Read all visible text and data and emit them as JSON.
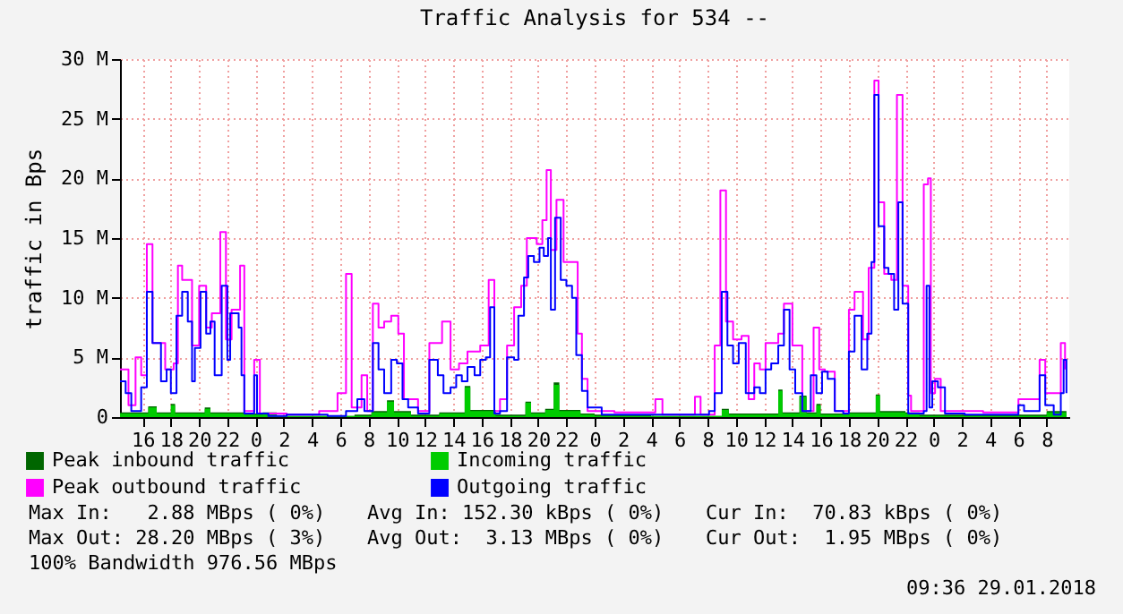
{
  "chart_data": {
    "type": "step",
    "title": "Traffic Analysis for 534 --",
    "ylabel": "traffic in Bps",
    "xlim": [
      "2018-01-26T14:24",
      "2018-01-29T09:36"
    ],
    "xticks": [
      {
        "value": "2018-01-26T16:00",
        "label": "16"
      },
      {
        "value": "2018-01-26T18:00",
        "label": "18"
      },
      {
        "value": "2018-01-26T20:00",
        "label": "20"
      },
      {
        "value": "2018-01-26T22:00",
        "label": "22"
      },
      {
        "value": "2018-01-27T00:00",
        "label": "0"
      },
      {
        "value": "2018-01-27T02:00",
        "label": "2"
      },
      {
        "value": "2018-01-27T04:00",
        "label": "4"
      },
      {
        "value": "2018-01-27T06:00",
        "label": "6"
      },
      {
        "value": "2018-01-27T08:00",
        "label": "8"
      },
      {
        "value": "2018-01-27T10:00",
        "label": "10"
      },
      {
        "value": "2018-01-27T12:00",
        "label": "12"
      },
      {
        "value": "2018-01-27T14:00",
        "label": "14"
      },
      {
        "value": "2018-01-27T16:00",
        "label": "16"
      },
      {
        "value": "2018-01-27T18:00",
        "label": "18"
      },
      {
        "value": "2018-01-27T20:00",
        "label": "20"
      },
      {
        "value": "2018-01-27T22:00",
        "label": "22"
      },
      {
        "value": "2018-01-28T00:00",
        "label": "0"
      },
      {
        "value": "2018-01-28T02:00",
        "label": "2"
      },
      {
        "value": "2018-01-28T04:00",
        "label": "4"
      },
      {
        "value": "2018-01-28T06:00",
        "label": "6"
      },
      {
        "value": "2018-01-28T08:00",
        "label": "8"
      },
      {
        "value": "2018-01-28T10:00",
        "label": "10"
      },
      {
        "value": "2018-01-28T12:00",
        "label": "12"
      },
      {
        "value": "2018-01-28T14:00",
        "label": "14"
      },
      {
        "value": "2018-01-28T16:00",
        "label": "16"
      },
      {
        "value": "2018-01-28T18:00",
        "label": "18"
      },
      {
        "value": "2018-01-28T20:00",
        "label": "20"
      },
      {
        "value": "2018-01-28T22:00",
        "label": "22"
      },
      {
        "value": "2018-01-29T00:00",
        "label": "0"
      },
      {
        "value": "2018-01-29T02:00",
        "label": "2"
      },
      {
        "value": "2018-01-29T04:00",
        "label": "4"
      },
      {
        "value": "2018-01-29T06:00",
        "label": "6"
      },
      {
        "value": "2018-01-29T08:00",
        "label": "8"
      }
    ],
    "ylim": [
      0,
      30000000.0
    ],
    "yticks": [
      0,
      {
        "value": 5000000.0,
        "label": "5 M"
      },
      {
        "value": 10000000.0,
        "label": "10 M"
      },
      {
        "value": 15000000.0,
        "label": "15 M"
      },
      {
        "value": 20000000.0,
        "label": "20 M"
      },
      {
        "value": 25000000.0,
        "label": "25 M"
      },
      {
        "value": 30000000.0,
        "label": "30 M"
      }
    ],
    "grid": true,
    "legend": "bottom",
    "series": [
      {
        "name": "Peak inbound traffic",
        "type": "area",
        "color": "#006600",
        "x": [
          "2018-01-26T14:24",
          "2018-01-26T16:00",
          "2018-01-26T16:24",
          "2018-01-26T17:00",
          "2018-01-26T18:00",
          "2018-01-26T18:18",
          "2018-01-26T20:24",
          "2018-01-26T20:48",
          "2018-01-26T23:12",
          "2018-01-27T00:30",
          "2018-01-27T01:30",
          "2018-01-27T07:00",
          "2018-01-27T08:12",
          "2018-01-27T09:18",
          "2018-01-27T09:48",
          "2018-01-27T11:00",
          "2018-01-27T13:00",
          "2018-01-27T14:48",
          "2018-01-27T15:12",
          "2018-01-27T17:00",
          "2018-01-27T19:06",
          "2018-01-27T19:30",
          "2018-01-27T20:30",
          "2018-01-27T21:06",
          "2018-01-27T21:30",
          "2018-01-27T23:00",
          "2018-01-28T00:00",
          "2018-01-28T04:00",
          "2018-01-28T09:00",
          "2018-01-28T09:30",
          "2018-01-28T13:00",
          "2018-01-28T13:18",
          "2018-01-28T14:30",
          "2018-01-28T15:00",
          "2018-01-28T15:42",
          "2018-01-28T16:00",
          "2018-01-28T18:00",
          "2018-01-28T19:54",
          "2018-01-28T20:12",
          "2018-01-28T22:00",
          "2018-01-28T23:00",
          "2018-01-29T08:00",
          "2018-01-29T09:24"
        ],
        "values": [
          400000.0,
          400000.0,
          900000.0,
          400000.0,
          1100000.0,
          400000.0,
          800000.0,
          400000.0,
          300000.0,
          400000.0,
          100000.0,
          200000.0,
          500000.0,
          1400000.0,
          500000.0,
          200000.0,
          400000.0,
          2600000.0,
          600000.0,
          200000.0,
          1300000.0,
          400000.0,
          700000.0,
          2900000.0,
          600000.0,
          300000.0,
          200000.0,
          100000.0,
          700000.0,
          300000.0,
          2300000.0,
          400000.0,
          1800000.0,
          400000.0,
          1100000.0,
          300000.0,
          400000.0,
          1900000.0,
          500000.0,
          400000.0,
          200000.0,
          500000.0,
          400000.0
        ]
      },
      {
        "name": "Incoming traffic",
        "type": "area",
        "color": "#00cc00",
        "x": [
          "2018-01-26T14:24",
          "2018-01-26T16:00",
          "2018-01-26T16:24",
          "2018-01-26T17:00",
          "2018-01-26T18:00",
          "2018-01-26T18:18",
          "2018-01-26T20:24",
          "2018-01-26T20:48",
          "2018-01-26T23:12",
          "2018-01-27T00:30",
          "2018-01-27T01:30",
          "2018-01-27T07:00",
          "2018-01-27T08:12",
          "2018-01-27T09:18",
          "2018-01-27T09:48",
          "2018-01-27T11:00",
          "2018-01-27T13:00",
          "2018-01-27T14:48",
          "2018-01-27T15:12",
          "2018-01-27T17:00",
          "2018-01-27T19:06",
          "2018-01-27T19:30",
          "2018-01-27T20:30",
          "2018-01-27T21:06",
          "2018-01-27T21:30",
          "2018-01-27T23:00",
          "2018-01-28T00:00",
          "2018-01-28T04:00",
          "2018-01-28T09:00",
          "2018-01-28T09:30",
          "2018-01-28T13:00",
          "2018-01-28T13:18",
          "2018-01-28T14:30",
          "2018-01-28T15:00",
          "2018-01-28T15:42",
          "2018-01-28T16:00",
          "2018-01-28T18:00",
          "2018-01-28T19:54",
          "2018-01-28T20:12",
          "2018-01-28T22:00",
          "2018-01-28T23:00",
          "2018-01-29T08:00",
          "2018-01-29T09:24"
        ],
        "values": [
          300000.0,
          300000.0,
          800000.0,
          300000.0,
          1000000.0,
          300000.0,
          700000.0,
          300000.0,
          200000.0,
          300000.0,
          100000.0,
          100000.0,
          400000.0,
          1300000.0,
          400000.0,
          100000.0,
          300000.0,
          2500000.0,
          500000.0,
          100000.0,
          1200000.0,
          300000.0,
          600000.0,
          2700000.0,
          500000.0,
          200000.0,
          100000.0,
          100000.0,
          600000.0,
          200000.0,
          2200000.0,
          300000.0,
          1700000.0,
          300000.0,
          1000000.0,
          200000.0,
          300000.0,
          1800000.0,
          400000.0,
          300000.0,
          100000.0,
          400000.0,
          300000.0
        ]
      },
      {
        "name": "Peak outbound traffic",
        "color": "#ff00ff",
        "x": [
          "2018-01-26T14:24",
          "2018-01-26T15:00",
          "2018-01-26T15:30",
          "2018-01-26T15:54",
          "2018-01-26T16:18",
          "2018-01-26T16:42",
          "2018-01-26T17:06",
          "2018-01-26T17:36",
          "2018-01-26T18:12",
          "2018-01-26T18:30",
          "2018-01-26T18:48",
          "2018-01-26T19:30",
          "2018-01-26T20:00",
          "2018-01-26T20:30",
          "2018-01-26T20:54",
          "2018-01-26T21:30",
          "2018-01-26T21:54",
          "2018-01-26T22:18",
          "2018-01-26T22:54",
          "2018-01-26T23:12",
          "2018-01-26T23:54",
          "2018-01-27T00:18",
          "2018-01-27T02:12",
          "2018-01-27T04:30",
          "2018-01-27T05:48",
          "2018-01-27T06:24",
          "2018-01-27T06:48",
          "2018-01-27T07:30",
          "2018-01-27T07:54",
          "2018-01-27T08:18",
          "2018-01-27T08:42",
          "2018-01-27T09:06",
          "2018-01-27T09:36",
          "2018-01-27T10:06",
          "2018-01-27T10:30",
          "2018-01-27T11:30",
          "2018-01-27T12:18",
          "2018-01-27T13:12",
          "2018-01-27T13:48",
          "2018-01-27T14:24",
          "2018-01-27T15:00",
          "2018-01-27T15:54",
          "2018-01-27T16:30",
          "2018-01-27T16:54",
          "2018-01-27T17:18",
          "2018-01-27T17:48",
          "2018-01-27T18:18",
          "2018-01-27T18:48",
          "2018-01-27T19:12",
          "2018-01-27T19:54",
          "2018-01-27T20:18",
          "2018-01-27T20:36",
          "2018-01-27T20:54",
          "2018-01-27T21:18",
          "2018-01-27T21:48",
          "2018-01-27T22:18",
          "2018-01-27T22:48",
          "2018-01-27T23:06",
          "2018-01-27T23:30",
          "2018-01-28T01:24",
          "2018-01-28T04:18",
          "2018-01-28T04:48",
          "2018-01-28T07:06",
          "2018-01-28T07:30",
          "2018-01-28T08:30",
          "2018-01-28T08:54",
          "2018-01-28T09:18",
          "2018-01-28T09:48",
          "2018-01-28T10:24",
          "2018-01-28T10:54",
          "2018-01-28T11:18",
          "2018-01-28T11:42",
          "2018-01-28T12:06",
          "2018-01-28T13:00",
          "2018-01-28T13:24",
          "2018-01-28T14:00",
          "2018-01-28T14:42",
          "2018-01-28T15:30",
          "2018-01-28T15:54",
          "2018-01-28T16:18",
          "2018-01-28T17:00",
          "2018-01-28T18:00",
          "2018-01-28T18:24",
          "2018-01-28T19:00",
          "2018-01-28T19:24",
          "2018-01-28T19:48",
          "2018-01-28T20:06",
          "2018-01-28T20:30",
          "2018-01-28T21:00",
          "2018-01-28T21:24",
          "2018-01-28T21:48",
          "2018-01-28T22:12",
          "2018-01-28T22:24",
          "2018-01-28T23:18",
          "2018-01-28T23:36",
          "2018-01-28T23:48",
          "2018-01-29T00:06",
          "2018-01-29T00:30",
          "2018-01-29T03:30",
          "2018-01-29T06:00",
          "2018-01-29T07:30",
          "2018-01-29T07:54",
          "2018-01-29T09:00",
          "2018-01-29T09:18"
        ],
        "values": [
          4000000.0,
          1000000.0,
          5000000.0,
          3500000.0,
          14500000.0,
          6200000.0,
          6200000.0,
          4000000.0,
          4500000.0,
          12700000.0,
          11500000.0,
          6000000.0,
          11000000.0,
          7500000.0,
          8700000.0,
          15500000.0,
          6500000.0,
          9000000.0,
          12700000.0,
          500000.0,
          4800000.0,
          300000.0,
          200000.0,
          500000.0,
          2000000.0,
          12000000.0,
          800000.0,
          3500000.0,
          500000.0,
          9500000.0,
          7500000.0,
          8000000.0,
          8500000.0,
          7000000.0,
          1500000.0,
          500000.0,
          6200000.0,
          8000000.0,
          4000000.0,
          4500000.0,
          5500000.0,
          6000000.0,
          11500000.0,
          500000.0,
          1500000.0,
          6000000.0,
          9200000.0,
          11000000.0,
          15000000.0,
          14500000.0,
          16500000.0,
          20700000.0,
          14000000.0,
          18200000.0,
          13000000.0,
          13000000.0,
          7000000.0,
          3200000.0,
          500000.0,
          400000.0,
          1500000.0,
          200000.0,
          1700000.0,
          200000.0,
          6000000.0,
          19000000.0,
          8000000.0,
          6500000.0,
          6800000.0,
          1500000.0,
          4500000.0,
          4000000.0,
          6200000.0,
          7000000.0,
          9500000.0,
          6000000.0,
          500000.0,
          7500000.0,
          4000000.0,
          3800000.0,
          500000.0,
          9000000.0,
          10500000.0,
          6500000.0,
          12500000.0,
          28200000.0,
          18000000.0,
          12000000.0,
          11500000.0,
          27000000.0,
          11000000.0,
          1800000.0,
          500000.0,
          19500000.0,
          20000000.0,
          2000000.0,
          3200000.0,
          500000.0,
          400000.0,
          1500000.0,
          4800000.0,
          2000000.0,
          6200000.0,
          4000000.0
        ]
      },
      {
        "name": "Outgoing traffic",
        "color": "#0000ff",
        "x": [
          "2018-01-26T14:24",
          "2018-01-26T14:48",
          "2018-01-26T15:12",
          "2018-01-26T15:54",
          "2018-01-26T16:18",
          "2018-01-26T16:42",
          "2018-01-26T17:06",
          "2018-01-26T17:18",
          "2018-01-26T17:42",
          "2018-01-26T18:00",
          "2018-01-26T18:24",
          "2018-01-26T18:48",
          "2018-01-26T19:12",
          "2018-01-26T19:30",
          "2018-01-26T19:42",
          "2018-01-26T20:06",
          "2018-01-26T20:30",
          "2018-01-26T20:48",
          "2018-01-26T21:06",
          "2018-01-26T21:36",
          "2018-01-26T22:00",
          "2018-01-26T22:12",
          "2018-01-26T22:48",
          "2018-01-26T23:00",
          "2018-01-26T23:12",
          "2018-01-26T23:54",
          "2018-01-27T00:06",
          "2018-01-27T00:54",
          "2018-01-27T02:12",
          "2018-01-27T05:06",
          "2018-01-27T06:24",
          "2018-01-27T07:12",
          "2018-01-27T07:42",
          "2018-01-27T08:18",
          "2018-01-27T08:42",
          "2018-01-27T09:06",
          "2018-01-27T09:36",
          "2018-01-27T10:00",
          "2018-01-27T10:24",
          "2018-01-27T10:48",
          "2018-01-27T11:30",
          "2018-01-27T12:18",
          "2018-01-27T12:54",
          "2018-01-27T13:18",
          "2018-01-27T13:48",
          "2018-01-27T14:12",
          "2018-01-27T14:36",
          "2018-01-27T15:00",
          "2018-01-27T15:30",
          "2018-01-27T15:54",
          "2018-01-27T16:18",
          "2018-01-27T16:36",
          "2018-01-27T16:54",
          "2018-01-27T17:18",
          "2018-01-27T17:48",
          "2018-01-27T18:18",
          "2018-01-27T18:36",
          "2018-01-27T19:00",
          "2018-01-27T19:18",
          "2018-01-27T19:42",
          "2018-01-27T20:06",
          "2018-01-27T20:24",
          "2018-01-27T20:42",
          "2018-01-27T20:54",
          "2018-01-27T21:12",
          "2018-01-27T21:36",
          "2018-01-27T22:00",
          "2018-01-27T22:24",
          "2018-01-27T22:42",
          "2018-01-27T23:06",
          "2018-01-27T23:30",
          "2018-01-28T00:30",
          "2018-01-28T04:18",
          "2018-01-28T08:06",
          "2018-01-28T08:30",
          "2018-01-28T09:00",
          "2018-01-28T09:24",
          "2018-01-28T09:48",
          "2018-01-28T10:12",
          "2018-01-28T10:42",
          "2018-01-28T11:18",
          "2018-01-28T11:42",
          "2018-01-28T12:06",
          "2018-01-28T12:30",
          "2018-01-28T13:00",
          "2018-01-28T13:24",
          "2018-01-28T13:48",
          "2018-01-28T14:12",
          "2018-01-28T14:42",
          "2018-01-28T15:18",
          "2018-01-28T15:42",
          "2018-01-28T16:06",
          "2018-01-28T16:30",
          "2018-01-28T17:00",
          "2018-01-28T17:36",
          "2018-01-28T18:00",
          "2018-01-28T18:24",
          "2018-01-28T18:54",
          "2018-01-28T19:18",
          "2018-01-28T19:36",
          "2018-01-28T19:48",
          "2018-01-28T20:06",
          "2018-01-28T20:30",
          "2018-01-28T20:48",
          "2018-01-28T21:12",
          "2018-01-28T21:30",
          "2018-01-28T21:48",
          "2018-01-28T22:12",
          "2018-01-28T23:18",
          "2018-01-28T23:30",
          "2018-01-28T23:42",
          "2018-01-28T23:54",
          "2018-01-29T00:18",
          "2018-01-29T00:48",
          "2018-01-29T02:12",
          "2018-01-29T05:36",
          "2018-01-29T06:00",
          "2018-01-29T06:24",
          "2018-01-29T07:30",
          "2018-01-29T07:54",
          "2018-01-29T08:30",
          "2018-01-29T09:00",
          "2018-01-29T09:12",
          "2018-01-29T09:24"
        ],
        "values": [
          3000000.0,
          2000000.0,
          500000.0,
          2500000.0,
          10500000.0,
          6200000.0,
          6200000.0,
          3000000.0,
          4000000.0,
          2000000.0,
          8500000.0,
          10500000.0,
          8000000.0,
          3000000.0,
          5800000.0,
          10500000.0,
          7000000.0,
          8000000.0,
          3500000.0,
          11000000.0,
          4800000.0,
          8700000.0,
          7500000.0,
          3500000.0,
          300000.0,
          3500000.0,
          300000.0,
          100000.0,
          200000.0,
          100000.0,
          500000.0,
          1500000.0,
          500000.0,
          6200000.0,
          4000000.0,
          2000000.0,
          4800000.0,
          4500000.0,
          1500000.0,
          800000.0,
          300000.0,
          4800000.0,
          3500000.0,
          2000000.0,
          2500000.0,
          3500000.0,
          3000000.0,
          4200000.0,
          3500000.0,
          4800000.0,
          5000000.0,
          9200000.0,
          300000.0,
          500000.0,
          5000000.0,
          4800000.0,
          8500000.0,
          11700000.0,
          13500000.0,
          13000000.0,
          14200000.0,
          13500000.0,
          15000000.0,
          9000000.0,
          16700000.0,
          11500000.0,
          11000000.0,
          10000000.0,
          5200000.0,
          2200000.0,
          800000.0,
          200000.0,
          200000.0,
          500000.0,
          2000000.0,
          10500000.0,
          6000000.0,
          4500000.0,
          6200000.0,
          2000000.0,
          2500000.0,
          2000000.0,
          4000000.0,
          4500000.0,
          6000000.0,
          9000000.0,
          4000000.0,
          2000000.0,
          500000.0,
          3500000.0,
          2000000.0,
          3800000.0,
          3200000.0,
          500000.0,
          300000.0,
          5500000.0,
          8500000.0,
          4000000.0,
          7000000.0,
          13000000.0,
          27000000.0,
          16000000.0,
          12500000.0,
          12000000.0,
          9000000.0,
          18000000.0,
          9500000.0,
          300000.0,
          500000.0,
          11000000.0,
          800000.0,
          3000000.0,
          2500000.0,
          300000.0,
          200000.0,
          200000.0,
          1000000.0,
          500000.0,
          3500000.0,
          1000000.0,
          200000.0,
          2000000.0,
          4800000.0,
          2000000.0
        ]
      }
    ],
    "annotations": [
      "Max In:   2.88 MBps ( 0%)",
      "Avg In: 152.30 kBps ( 0%)",
      "Cur In:  70.83 kBps ( 0%)",
      "Max Out: 28.20 MBps ( 3%)",
      "Avg Out:  3.13 MBps ( 0%)",
      "Cur Out:  1.95 MBps ( 0%)",
      "100% Bandwidth 976.56 MBps",
      "09:36 29.01.2018"
    ]
  }
}
